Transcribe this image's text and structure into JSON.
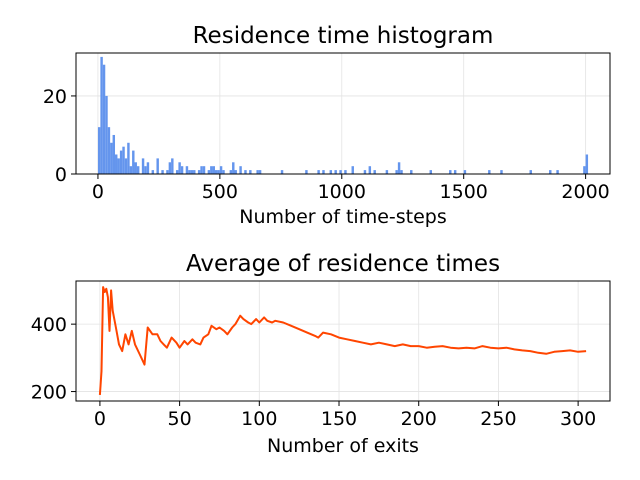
{
  "chart_data": [
    {
      "type": "bar",
      "title": "Residence time histogram",
      "xlabel": "Number of time-steps",
      "ylabel": "",
      "xlim": [
        -90,
        2100
      ],
      "ylim": [
        0,
        31
      ],
      "xticks": [
        0,
        500,
        1000,
        1500,
        2000
      ],
      "yticks": [
        0,
        20
      ],
      "grid": true,
      "bin_width": 10,
      "color": "#6495ED",
      "bins": [
        [
          0,
          12
        ],
        [
          10,
          30
        ],
        [
          20,
          28
        ],
        [
          30,
          20
        ],
        [
          40,
          12
        ],
        [
          50,
          8
        ],
        [
          60,
          10
        ],
        [
          70,
          5
        ],
        [
          80,
          4
        ],
        [
          90,
          6
        ],
        [
          100,
          7
        ],
        [
          110,
          4
        ],
        [
          120,
          8
        ],
        [
          130,
          2
        ],
        [
          140,
          6
        ],
        [
          150,
          3
        ],
        [
          160,
          2
        ],
        [
          180,
          4
        ],
        [
          190,
          2
        ],
        [
          200,
          3
        ],
        [
          220,
          1
        ],
        [
          240,
          4
        ],
        [
          260,
          1
        ],
        [
          280,
          1
        ],
        [
          290,
          3
        ],
        [
          300,
          4
        ],
        [
          320,
          1
        ],
        [
          330,
          3
        ],
        [
          340,
          2
        ],
        [
          360,
          2
        ],
        [
          370,
          1
        ],
        [
          380,
          1
        ],
        [
          390,
          1
        ],
        [
          410,
          1
        ],
        [
          420,
          2
        ],
        [
          430,
          2
        ],
        [
          450,
          1
        ],
        [
          460,
          2
        ],
        [
          470,
          2
        ],
        [
          480,
          1
        ],
        [
          490,
          1
        ],
        [
          500,
          2
        ],
        [
          510,
          1
        ],
        [
          540,
          1
        ],
        [
          550,
          3
        ],
        [
          560,
          1
        ],
        [
          580,
          2
        ],
        [
          600,
          1
        ],
        [
          620,
          1
        ],
        [
          650,
          1
        ],
        [
          660,
          1
        ],
        [
          750,
          1
        ],
        [
          850,
          1
        ],
        [
          900,
          1
        ],
        [
          920,
          1
        ],
        [
          950,
          1
        ],
        [
          970,
          1
        ],
        [
          990,
          1
        ],
        [
          1010,
          1
        ],
        [
          1040,
          2
        ],
        [
          1090,
          1
        ],
        [
          1110,
          2
        ],
        [
          1130,
          1
        ],
        [
          1180,
          1
        ],
        [
          1220,
          1
        ],
        [
          1230,
          3
        ],
        [
          1240,
          1
        ],
        [
          1280,
          1
        ],
        [
          1360,
          1
        ],
        [
          1440,
          1
        ],
        [
          1460,
          1
        ],
        [
          1500,
          1
        ],
        [
          1600,
          1
        ],
        [
          1650,
          1
        ],
        [
          1770,
          1
        ],
        [
          1850,
          1
        ],
        [
          1880,
          1
        ],
        [
          1990,
          2
        ],
        [
          2000,
          5
        ]
      ]
    },
    {
      "type": "line",
      "title": "Average of residence times",
      "xlabel": "Number of exits",
      "ylabel": "",
      "xlim": [
        -15,
        320
      ],
      "ylim": [
        172,
        528
      ],
      "xticks": [
        0,
        50,
        100,
        150,
        200,
        250,
        300
      ],
      "yticks": [
        200,
        400
      ],
      "grid": true,
      "color": "#FF4500",
      "x": [
        0,
        1,
        2,
        3,
        4,
        5,
        6,
        7,
        8,
        10,
        12,
        14,
        16,
        18,
        20,
        22,
        25,
        28,
        30,
        33,
        36,
        38,
        40,
        42,
        45,
        48,
        50,
        53,
        55,
        58,
        60,
        63,
        65,
        68,
        70,
        73,
        75,
        78,
        80,
        83,
        85,
        88,
        90,
        93,
        95,
        98,
        100,
        103,
        105,
        108,
        110,
        115,
        120,
        125,
        130,
        135,
        137,
        140,
        145,
        150,
        155,
        160,
        165,
        170,
        175,
        180,
        185,
        190,
        195,
        200,
        205,
        210,
        215,
        220,
        225,
        230,
        235,
        240,
        245,
        250,
        255,
        260,
        265,
        270,
        275,
        280,
        285,
        290,
        295,
        300,
        305
      ],
      "y": [
        190,
        260,
        510,
        495,
        505,
        480,
        380,
        500,
        440,
        390,
        340,
        320,
        370,
        340,
        380,
        340,
        310,
        280,
        390,
        370,
        370,
        350,
        340,
        330,
        360,
        345,
        330,
        350,
        340,
        355,
        345,
        340,
        360,
        370,
        395,
        385,
        390,
        380,
        370,
        390,
        400,
        425,
        415,
        405,
        400,
        415,
        405,
        420,
        410,
        405,
        410,
        405,
        395,
        385,
        375,
        365,
        360,
        375,
        370,
        360,
        355,
        350,
        345,
        340,
        345,
        340,
        335,
        340,
        335,
        335,
        330,
        333,
        335,
        330,
        328,
        330,
        328,
        335,
        330,
        328,
        330,
        325,
        322,
        320,
        315,
        312,
        318,
        320,
        322,
        318,
        320
      ]
    }
  ]
}
